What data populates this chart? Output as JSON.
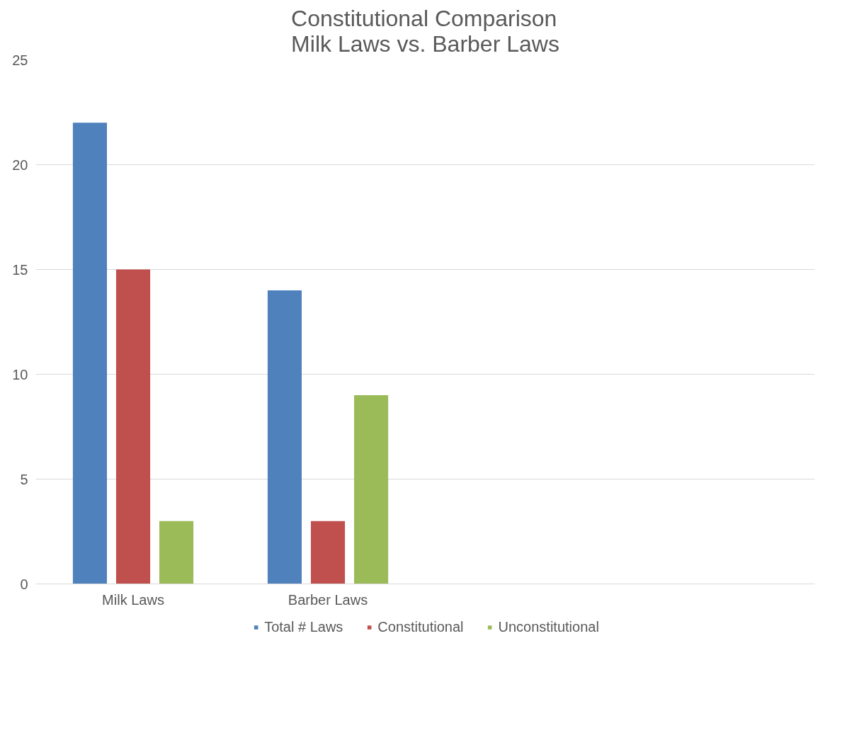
{
  "chart_data": {
    "type": "bar",
    "title": "Constitutional Comparison\nMilk Laws vs. Barber Laws",
    "categories": [
      "Milk Laws",
      "Barber Laws",
      null,
      null
    ],
    "series": [
      {
        "name": "Total # Laws",
        "color": "#4f81bd",
        "values": [
          22,
          14,
          null,
          null
        ]
      },
      {
        "name": "Constitutional",
        "color": "#c0504d",
        "values": [
          15,
          3,
          null,
          null
        ]
      },
      {
        "name": "Unconstitutional",
        "color": "#9bbb59",
        "values": [
          3,
          9,
          null,
          null
        ]
      }
    ],
    "ylim": [
      0,
      25
    ],
    "yticks": [
      0,
      5,
      10,
      15,
      20,
      25
    ],
    "grid": "y",
    "legend": "bottom"
  }
}
